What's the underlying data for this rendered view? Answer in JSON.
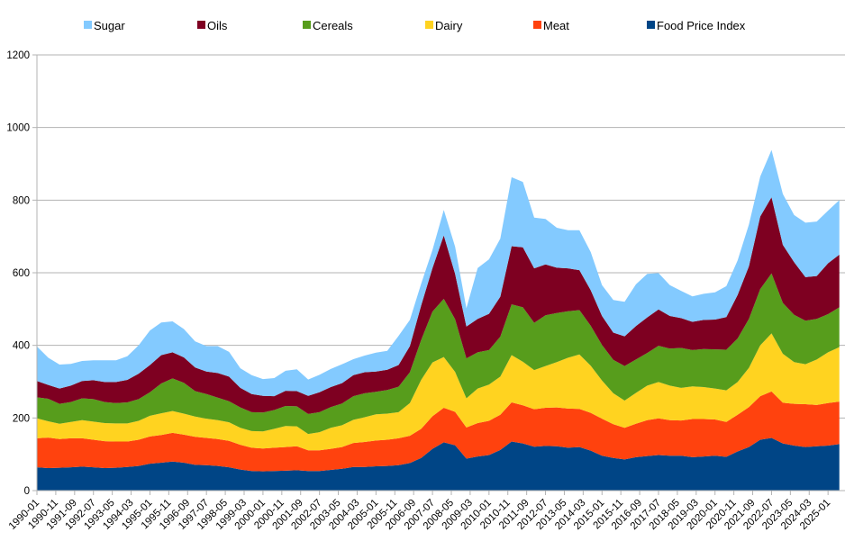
{
  "chart_data": {
    "type": "area",
    "stacked": true,
    "title": "",
    "xlabel": "",
    "ylabel": "",
    "ylim": [
      0,
      1200
    ],
    "yticks": [
      0,
      200,
      400,
      600,
      800,
      1000,
      1200
    ],
    "grid": "horizontal",
    "legend_position": "top",
    "x_tick_labels": [
      "1990-01",
      "1990-11",
      "1991-09",
      "1992-07",
      "1993-05",
      "1994-03",
      "1995-01",
      "1995-11",
      "1996-09",
      "1997-07",
      "1998-05",
      "1999-03",
      "2000-01",
      "2000-11",
      "2001-09",
      "2002-07",
      "2003-05",
      "2004-03",
      "2005-01",
      "2005-11",
      "2006-09",
      "2007-07",
      "2008-05",
      "2009-03",
      "2010-01",
      "2010-11",
      "2011-09",
      "2012-07",
      "2013-05",
      "2014-03",
      "2015-01",
      "2015-11",
      "2016-09",
      "2017-07",
      "2018-05",
      "2019-03",
      "2020-01",
      "2020-11",
      "2021-09",
      "2022-07",
      "2023-05",
      "2024-03",
      "2025-01"
    ],
    "x": [
      1990.0,
      1990.5,
      1991.0,
      1991.5,
      1992.0,
      1992.5,
      1993.0,
      1993.5,
      1994.0,
      1994.5,
      1995.0,
      1995.5,
      1996.0,
      1996.5,
      1997.0,
      1997.5,
      1998.0,
      1998.5,
      1999.0,
      1999.5,
      2000.0,
      2000.5,
      2001.0,
      2001.5,
      2002.0,
      2002.5,
      2003.0,
      2003.5,
      2004.0,
      2004.5,
      2005.0,
      2005.5,
      2006.0,
      2006.5,
      2007.0,
      2007.5,
      2008.0,
      2008.5,
      2009.0,
      2009.5,
      2010.0,
      2010.5,
      2011.0,
      2011.5,
      2012.0,
      2012.5,
      2013.0,
      2013.5,
      2014.0,
      2014.5,
      2015.0,
      2015.5,
      2016.0,
      2016.5,
      2017.0,
      2017.5,
      2018.0,
      2018.5,
      2019.0,
      2019.5,
      2020.0,
      2020.5,
      2021.0,
      2021.5,
      2022.0,
      2022.5,
      2023.0,
      2023.5,
      2024.0,
      2024.5,
      2025.0,
      2025.5
    ],
    "series": [
      {
        "name": "Food Price Index",
        "color": "#004586",
        "values": [
          64,
          62,
          63,
          64,
          66,
          64,
          62,
          63,
          65,
          68,
          74,
          77,
          80,
          77,
          71,
          70,
          68,
          64,
          58,
          54,
          53,
          54,
          55,
          56,
          54,
          54,
          57,
          60,
          65,
          65,
          67,
          68,
          70,
          76,
          90,
          115,
          133,
          125,
          88,
          94,
          98,
          112,
          135,
          130,
          121,
          123,
          122,
          118,
          120,
          110,
          96,
          90,
          86,
          92,
          95,
          98,
          96,
          96,
          92,
          94,
          96,
          93,
          108,
          120,
          140,
          145,
          130,
          124,
          120,
          122,
          124,
          128
        ]
      },
      {
        "name": "Meat",
        "color": "#ff420e",
        "values": [
          80,
          84,
          79,
          80,
          78,
          76,
          74,
          72,
          70,
          72,
          75,
          76,
          79,
          77,
          77,
          75,
          74,
          73,
          68,
          64,
          63,
          64,
          65,
          66,
          57,
          57,
          58,
          60,
          66,
          69,
          71,
          72,
          74,
          75,
          80,
          90,
          95,
          92,
          86,
          92,
          94,
          97,
          108,
          105,
          103,
          105,
          107,
          108,
          105,
          104,
          102,
          93,
          87,
          92,
          99,
          101,
          98,
          97,
          105,
          103,
          100,
          96,
          101,
          110,
          120,
          128,
          112,
          115,
          118,
          114,
          117,
          117
        ]
      },
      {
        "name": "Dairy",
        "color": "#ffd320",
        "values": [
          55,
          45,
          42,
          45,
          50,
          50,
          50,
          50,
          50,
          52,
          57,
          60,
          60,
          58,
          56,
          53,
          52,
          51,
          47,
          46,
          47,
          52,
          58,
          55,
          45,
          50,
          58,
          60,
          64,
          68,
          72,
          72,
          72,
          90,
          135,
          148,
          140,
          110,
          80,
          95,
          100,
          105,
          130,
          120,
          108,
          115,
          125,
          140,
          150,
          130,
          105,
          85,
          75,
          85,
          95,
          100,
          95,
          90,
          90,
          88,
          85,
          87,
          90,
          108,
          140,
          160,
          135,
          115,
          110,
          125,
          140,
          150
        ]
      },
      {
        "name": "Cereals",
        "color": "#579d1c",
        "values": [
          58,
          62,
          55,
          55,
          60,
          62,
          58,
          56,
          58,
          60,
          65,
          82,
          90,
          85,
          70,
          68,
          62,
          58,
          56,
          52,
          52,
          52,
          55,
          55,
          55,
          55,
          57,
          60,
          65,
          66,
          62,
          65,
          70,
          85,
          110,
          140,
          160,
          145,
          110,
          100,
          95,
          110,
          140,
          150,
          130,
          140,
          135,
          128,
          122,
          110,
          98,
          92,
          95,
          92,
          90,
          100,
          102,
          110,
          100,
          105,
          108,
          112,
          120,
          135,
          155,
          165,
          140,
          130,
          120,
          112,
          105,
          110
        ]
      },
      {
        "name": "Oils",
        "color": "#7e0021",
        "values": [
          45,
          38,
          42,
          45,
          48,
          52,
          55,
          58,
          62,
          70,
          75,
          78,
          72,
          70,
          65,
          62,
          68,
          68,
          54,
          50,
          46,
          38,
          42,
          42,
          50,
          55,
          55,
          56,
          58,
          58,
          56,
          56,
          60,
          72,
          95,
          120,
          175,
          125,
          88,
          92,
          100,
          110,
          160,
          165,
          150,
          140,
          125,
          118,
          110,
          98,
          80,
          75,
          82,
          92,
          98,
          100,
          90,
          82,
          78,
          80,
          82,
          90,
          120,
          145,
          200,
          210,
          160,
          145,
          120,
          118,
          140,
          145
        ]
      },
      {
        "name": "Sugar",
        "color": "#83caff",
        "values": [
          95,
          75,
          66,
          60,
          55,
          55,
          60,
          60,
          65,
          78,
          95,
          90,
          85,
          78,
          72,
          70,
          74,
          68,
          54,
          52,
          46,
          50,
          55,
          60,
          45,
          48,
          50,
          52,
          44,
          46,
          52,
          52,
          80,
          72,
          60,
          50,
          70,
          75,
          50,
          140,
          150,
          160,
          190,
          180,
          140,
          125,
          110,
          105,
          110,
          105,
          85,
          90,
          95,
          115,
          120,
          100,
          85,
          75,
          70,
          72,
          75,
          85,
          95,
          115,
          110,
          130,
          140,
          130,
          150,
          150,
          145,
          150
        ]
      }
    ]
  }
}
